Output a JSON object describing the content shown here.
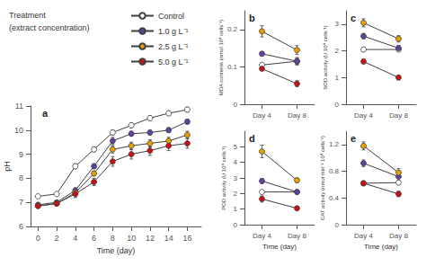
{
  "chart_data": [
    {
      "type": "line",
      "annotation": "a",
      "legend": "upper left",
      "legend_title": "Treatment",
      "legend_subtitle": "(extract concentration)",
      "xlabel": "Time (day)",
      "ylabel": "pH",
      "x": [
        0,
        2,
        4,
        6,
        8,
        10,
        12,
        14,
        16
      ],
      "xlim": [
        -0.8,
        17.5
      ],
      "xticks": [
        0,
        2,
        4,
        6,
        8,
        10,
        12,
        14,
        16
      ],
      "ylim": [
        6,
        11
      ],
      "yticks": [
        6,
        7,
        8,
        9,
        10,
        11
      ],
      "grid": false,
      "color": "#404040",
      "marker": "circle",
      "series": [
        {
          "name": "Control",
          "color": "#ffffff",
          "values": [
            7.25,
            7.35,
            8.5,
            9.2,
            9.9,
            10.2,
            10.5,
            10.7,
            10.85
          ],
          "errors": [
            0.05,
            0.05,
            0.1,
            0.1,
            0.1,
            0.1,
            0.1,
            0.1,
            0.1
          ]
        },
        {
          "name": "1.0 g L⁻¹",
          "color": "#6040a0",
          "values": [
            6.9,
            7.0,
            7.5,
            8.5,
            9.55,
            9.85,
            9.9,
            10.0,
            10.35
          ],
          "errors": [
            0.05,
            0.05,
            0.1,
            0.1,
            0.15,
            0.1,
            0.1,
            0.1,
            0.1
          ]
        },
        {
          "name": "2.5 g L⁻¹",
          "color": "#e8a000",
          "values": [
            6.85,
            6.95,
            7.4,
            8.2,
            9.2,
            9.35,
            9.45,
            9.55,
            9.8
          ],
          "errors": [
            0.05,
            0.05,
            0.1,
            0.1,
            0.15,
            0.15,
            0.15,
            0.15,
            0.15
          ]
        },
        {
          "name": "5.0 g L⁻¹",
          "color": "#cc1010",
          "values": [
            6.85,
            6.95,
            7.35,
            7.85,
            8.7,
            9.0,
            9.15,
            9.35,
            9.45
          ],
          "errors": [
            0.05,
            0.05,
            0.15,
            0.15,
            0.2,
            0.2,
            0.2,
            0.2,
            0.2
          ]
        }
      ]
    },
    {
      "type": "line",
      "annotation": "b",
      "ylabel": "MDA contents (nmol 10⁴ cells⁻¹)",
      "categories": [
        "Day 4",
        "Day 8"
      ],
      "ylim": [
        0,
        0.25
      ],
      "yticks": [
        0,
        0.1,
        0.2
      ],
      "grid": false,
      "color": "#404040",
      "marker": "circle",
      "series": [
        {
          "name": "Control",
          "color": "#ffffff",
          "values": [
            0.105,
            0.115
          ],
          "errors": [
            0.005,
            0.008
          ]
        },
        {
          "name": "1.0 g L⁻¹",
          "color": "#6040a0",
          "values": [
            0.135,
            0.115
          ],
          "errors": [
            0.005,
            0.01
          ]
        },
        {
          "name": "2.5 g L⁻¹",
          "color": "#e8a000",
          "values": [
            0.195,
            0.145
          ],
          "errors": [
            0.015,
            0.012
          ]
        },
        {
          "name": "5.0 g L⁻¹",
          "color": "#cc1010",
          "values": [
            0.095,
            0.055
          ],
          "errors": [
            0.005,
            0.008
          ]
        }
      ]
    },
    {
      "type": "line",
      "annotation": "c",
      "ylabel": "SOD activity (U 10⁴ cells⁻¹)",
      "categories": [
        "Day 4",
        "Day 8"
      ],
      "ylim": [
        0,
        3.5
      ],
      "yticks": [
        0,
        1,
        2,
        3
      ],
      "grid": false,
      "color": "#404040",
      "marker": "circle",
      "series": [
        {
          "name": "Control",
          "color": "#ffffff",
          "values": [
            2.05,
            2.05
          ],
          "errors": [
            0.08,
            0.08
          ]
        },
        {
          "name": "1.0 g L⁻¹",
          "color": "#6040a0",
          "values": [
            2.55,
            2.1
          ],
          "errors": [
            0.1,
            0.1
          ]
        },
        {
          "name": "2.5 g L⁻¹",
          "color": "#e8a000",
          "values": [
            3.05,
            2.45
          ],
          "errors": [
            0.15,
            0.12
          ]
        },
        {
          "name": "5.0 g L⁻¹",
          "color": "#cc1010",
          "values": [
            1.6,
            1.0
          ],
          "errors": [
            0.08,
            0.08
          ]
        }
      ]
    },
    {
      "type": "line",
      "annotation": "d",
      "xlabel": "Time (day)",
      "ylabel": "POD activity (U 10⁴ cells⁻¹)",
      "categories": [
        "Day 4",
        "Day 8"
      ],
      "ylim": [
        0,
        6
      ],
      "yticks": [
        0,
        1,
        2,
        3,
        4,
        5
      ],
      "grid": false,
      "color": "#404040",
      "marker": "circle",
      "series": [
        {
          "name": "Control",
          "color": "#ffffff",
          "values": [
            2.1,
            2.1
          ],
          "errors": [
            0.1,
            0.1
          ]
        },
        {
          "name": "1.0 g L⁻¹",
          "color": "#6040a0",
          "values": [
            2.8,
            2.1
          ],
          "errors": [
            0.15,
            0.12
          ]
        },
        {
          "name": "2.5 g L⁻¹",
          "color": "#e8a000",
          "values": [
            4.7,
            2.85
          ],
          "errors": [
            0.4,
            0.15
          ]
        },
        {
          "name": "5.0 g L⁻¹",
          "color": "#cc1010",
          "values": [
            1.65,
            1.05
          ],
          "errors": [
            0.2,
            0.1
          ]
        }
      ]
    },
    {
      "type": "line",
      "annotation": "e",
      "xlabel": "Time (day)",
      "ylabel": "CAT activity (nmol min⁻¹ 10⁴ cells⁻¹)",
      "categories": [
        "Day 4",
        "Day 8"
      ],
      "ylim": [
        0,
        1.4
      ],
      "yticks": [
        0,
        0.4,
        0.8,
        1.2
      ],
      "grid": false,
      "color": "#404040",
      "marker": "circle",
      "series": [
        {
          "name": "Control",
          "color": "#ffffff",
          "values": [
            0.62,
            0.63
          ],
          "errors": [
            0.03,
            0.03
          ]
        },
        {
          "name": "1.0 g L⁻¹",
          "color": "#6040a0",
          "values": [
            0.92,
            0.72
          ],
          "errors": [
            0.05,
            0.08
          ]
        },
        {
          "name": "2.5 g L⁻¹",
          "color": "#e8a000",
          "values": [
            1.18,
            0.78
          ],
          "errors": [
            0.06,
            0.06
          ]
        },
        {
          "name": "5.0 g L⁻¹",
          "color": "#cc1010",
          "values": [
            0.62,
            0.46
          ],
          "errors": [
            0.03,
            0.04
          ]
        }
      ]
    }
  ]
}
